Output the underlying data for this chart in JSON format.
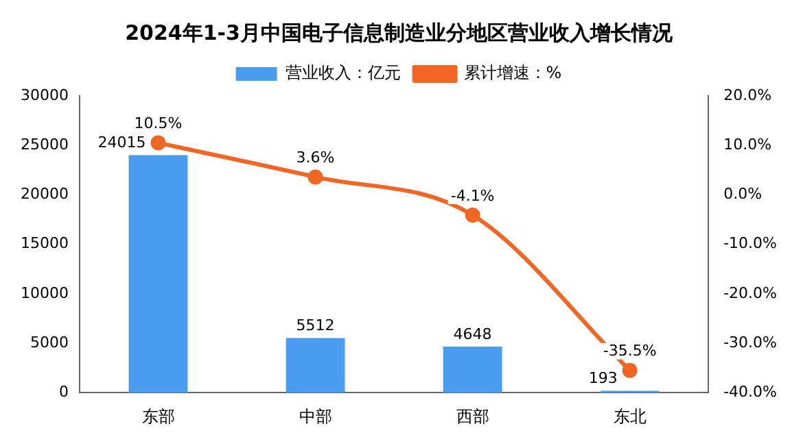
{
  "chart_data": {
    "type": "bar",
    "title": "2024年1-3月中国电子信息制造业分地区营业收入增长情况",
    "categories": [
      "东部",
      "中部",
      "西部",
      "东北"
    ],
    "series": [
      {
        "name": "营业收入：亿元",
        "color": "#4a9cf0",
        "values": [
          24015,
          5512,
          4648,
          193
        ],
        "value_labels": [
          "24015",
          "5512",
          "4648",
          "193"
        ]
      },
      {
        "name": "累计增速：%",
        "type": "line",
        "axis": "y2",
        "color": "#f26522",
        "values": [
          10.5,
          3.6,
          -4.1,
          -35.5
        ],
        "value_labels": [
          "10.5%",
          "3.6%",
          "-4.1%",
          "-35.5%"
        ]
      }
    ],
    "ylim": [
      0,
      30000
    ],
    "yticks": [
      0,
      5000,
      10000,
      15000,
      20000,
      25000,
      30000
    ],
    "y2lim": [
      -40,
      20
    ],
    "y2ticks": [
      {
        "value": -40,
        "label": "-40.0%"
      },
      {
        "value": -30,
        "label": "-30.0%"
      },
      {
        "value": -20,
        "label": "-20.0%"
      },
      {
        "value": -10,
        "label": "-10.0%"
      },
      {
        "value": 0,
        "label": "0.0%"
      },
      {
        "value": 10,
        "label": "10.0%"
      },
      {
        "value": 20,
        "label": "20.0%"
      }
    ],
    "marker": "circle",
    "grid": false,
    "legend": "top"
  }
}
